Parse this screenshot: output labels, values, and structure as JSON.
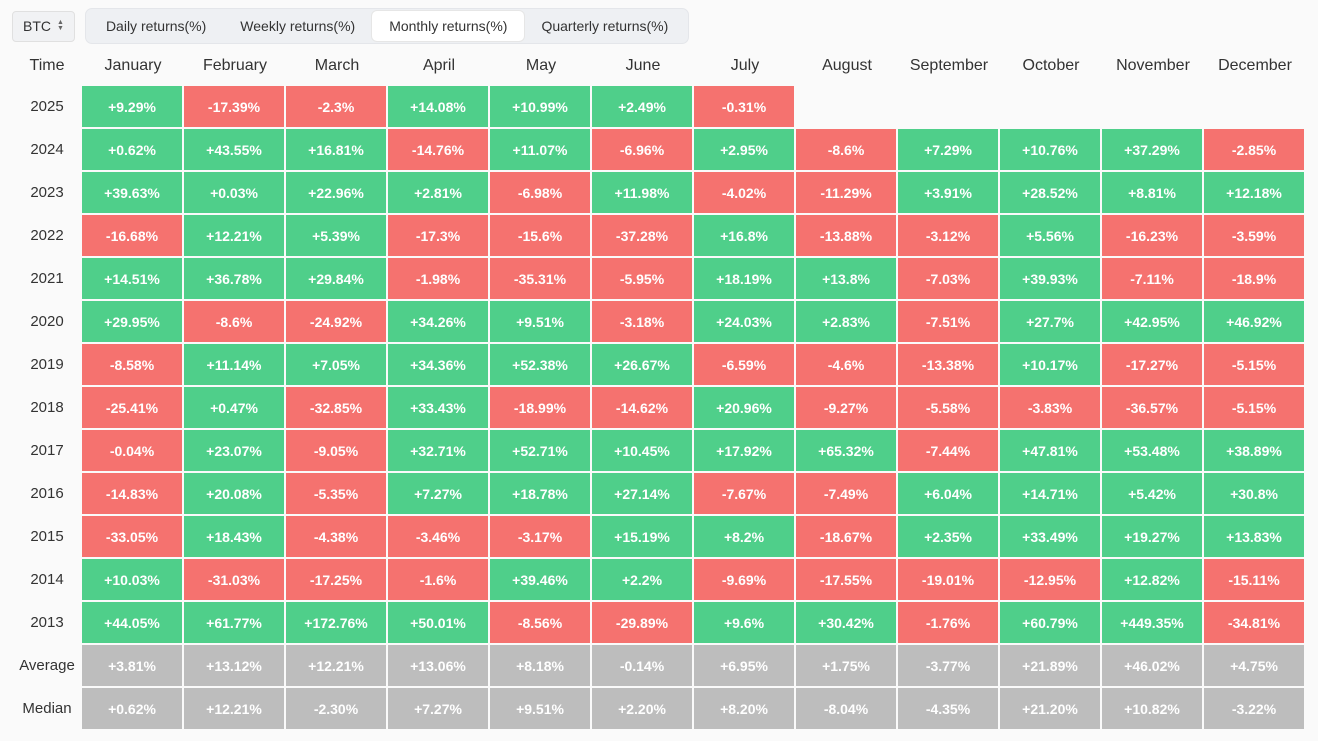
{
  "asset": {
    "label": "BTC"
  },
  "tabs": [
    {
      "label": "Daily returns(%)",
      "active": false
    },
    {
      "label": "Weekly returns(%)",
      "active": false
    },
    {
      "label": "Monthly returns(%)",
      "active": true
    },
    {
      "label": "Quarterly returns(%)",
      "active": false
    }
  ],
  "colors": {
    "positive": "#4fcf8a",
    "negative": "#f5726f",
    "summary": "#bdbdbd"
  },
  "table": {
    "time_header": "Time",
    "months": [
      "January",
      "February",
      "March",
      "April",
      "May",
      "June",
      "July",
      "August",
      "September",
      "October",
      "November",
      "December"
    ],
    "rows": [
      {
        "year": "2025",
        "values": [
          "+9.29%",
          "-17.39%",
          "-2.3%",
          "+14.08%",
          "+10.99%",
          "+2.49%",
          "-0.31%",
          "",
          "",
          "",
          "",
          ""
        ]
      },
      {
        "year": "2024",
        "values": [
          "+0.62%",
          "+43.55%",
          "+16.81%",
          "-14.76%",
          "+11.07%",
          "-6.96%",
          "+2.95%",
          "-8.6%",
          "+7.29%",
          "+10.76%",
          "+37.29%",
          "-2.85%"
        ]
      },
      {
        "year": "2023",
        "values": [
          "+39.63%",
          "+0.03%",
          "+22.96%",
          "+2.81%",
          "-6.98%",
          "+11.98%",
          "-4.02%",
          "-11.29%",
          "+3.91%",
          "+28.52%",
          "+8.81%",
          "+12.18%"
        ]
      },
      {
        "year": "2022",
        "values": [
          "-16.68%",
          "+12.21%",
          "+5.39%",
          "-17.3%",
          "-15.6%",
          "-37.28%",
          "+16.8%",
          "-13.88%",
          "-3.12%",
          "+5.56%",
          "-16.23%",
          "-3.59%"
        ]
      },
      {
        "year": "2021",
        "values": [
          "+14.51%",
          "+36.78%",
          "+29.84%",
          "-1.98%",
          "-35.31%",
          "-5.95%",
          "+18.19%",
          "+13.8%",
          "-7.03%",
          "+39.93%",
          "-7.11%",
          "-18.9%"
        ]
      },
      {
        "year": "2020",
        "values": [
          "+29.95%",
          "-8.6%",
          "-24.92%",
          "+34.26%",
          "+9.51%",
          "-3.18%",
          "+24.03%",
          "+2.83%",
          "-7.51%",
          "+27.7%",
          "+42.95%",
          "+46.92%"
        ]
      },
      {
        "year": "2019",
        "values": [
          "-8.58%",
          "+11.14%",
          "+7.05%",
          "+34.36%",
          "+52.38%",
          "+26.67%",
          "-6.59%",
          "-4.6%",
          "-13.38%",
          "+10.17%",
          "-17.27%",
          "-5.15%"
        ]
      },
      {
        "year": "2018",
        "values": [
          "-25.41%",
          "+0.47%",
          "-32.85%",
          "+33.43%",
          "-18.99%",
          "-14.62%",
          "+20.96%",
          "-9.27%",
          "-5.58%",
          "-3.83%",
          "-36.57%",
          "-5.15%"
        ]
      },
      {
        "year": "2017",
        "values": [
          "-0.04%",
          "+23.07%",
          "-9.05%",
          "+32.71%",
          "+52.71%",
          "+10.45%",
          "+17.92%",
          "+65.32%",
          "-7.44%",
          "+47.81%",
          "+53.48%",
          "+38.89%"
        ]
      },
      {
        "year": "2016",
        "values": [
          "-14.83%",
          "+20.08%",
          "-5.35%",
          "+7.27%",
          "+18.78%",
          "+27.14%",
          "-7.67%",
          "-7.49%",
          "+6.04%",
          "+14.71%",
          "+5.42%",
          "+30.8%"
        ]
      },
      {
        "year": "2015",
        "values": [
          "-33.05%",
          "+18.43%",
          "-4.38%",
          "-3.46%",
          "-3.17%",
          "+15.19%",
          "+8.2%",
          "-18.67%",
          "+2.35%",
          "+33.49%",
          "+19.27%",
          "+13.83%"
        ]
      },
      {
        "year": "2014",
        "values": [
          "+10.03%",
          "-31.03%",
          "-17.25%",
          "-1.6%",
          "+39.46%",
          "+2.2%",
          "-9.69%",
          "-17.55%",
          "-19.01%",
          "-12.95%",
          "+12.82%",
          "-15.11%"
        ]
      },
      {
        "year": "2013",
        "values": [
          "+44.05%",
          "+61.77%",
          "+172.76%",
          "+50.01%",
          "-8.56%",
          "-29.89%",
          "+9.6%",
          "+30.42%",
          "-1.76%",
          "+60.79%",
          "+449.35%",
          "-34.81%"
        ]
      }
    ],
    "summary": [
      {
        "label": "Average",
        "values": [
          "+3.81%",
          "+13.12%",
          "+12.21%",
          "+13.06%",
          "+8.18%",
          "-0.14%",
          "+6.95%",
          "+1.75%",
          "-3.77%",
          "+21.89%",
          "+46.02%",
          "+4.75%"
        ]
      },
      {
        "label": "Median",
        "values": [
          "+0.62%",
          "+12.21%",
          "-2.30%",
          "+7.27%",
          "+9.51%",
          "+2.20%",
          "+8.20%",
          "-8.04%",
          "-4.35%",
          "+21.20%",
          "+10.82%",
          "-3.22%"
        ]
      }
    ]
  }
}
